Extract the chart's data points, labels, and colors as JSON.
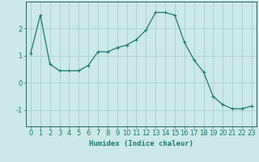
{
  "x": [
    0,
    1,
    2,
    3,
    4,
    5,
    6,
    7,
    8,
    9,
    10,
    11,
    12,
    13,
    14,
    15,
    16,
    17,
    18,
    19,
    20,
    21,
    22,
    23
  ],
  "y": [
    1.1,
    2.5,
    0.7,
    0.45,
    0.45,
    0.45,
    0.65,
    1.15,
    1.15,
    1.3,
    1.4,
    1.6,
    1.95,
    2.6,
    2.6,
    2.5,
    1.5,
    0.85,
    0.4,
    -0.5,
    -0.8,
    -0.95,
    -0.95,
    -0.85
  ],
  "line_color": "#1a7a6e",
  "marker": "+",
  "markersize": 3,
  "linewidth": 0.9,
  "xlabel": "Humidex (Indice chaleur)",
  "xlabel_fontsize": 6.5,
  "xtick_labels": [
    "0",
    "1",
    "2",
    "3",
    "4",
    "5",
    "6",
    "7",
    "8",
    "9",
    "10",
    "11",
    "12",
    "13",
    "14",
    "15",
    "16",
    "17",
    "18",
    "19",
    "20",
    "21",
    "22",
    "23"
  ],
  "ytick_values": [
    -1,
    0,
    1,
    2
  ],
  "ylim": [
    -1.6,
    3.0
  ],
  "xlim": [
    -0.5,
    23.5
  ],
  "background_color": "#cce8e8",
  "grid_color": "#aacece",
  "tick_fontsize": 6,
  "spine_color": "#2a6060"
}
